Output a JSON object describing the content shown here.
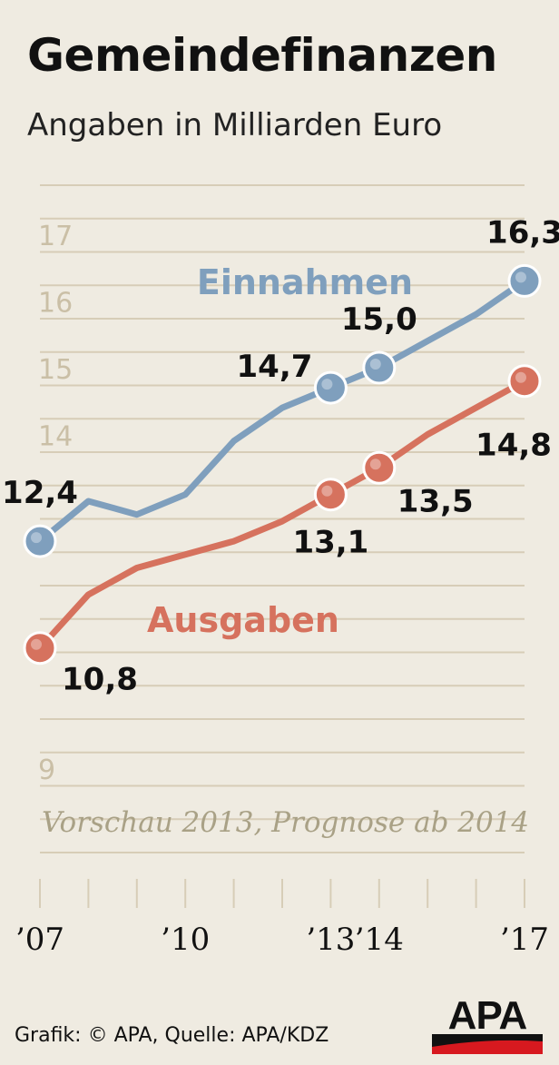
{
  "title": "Gemeindefinanzen",
  "subtitle": "Angaben in Milliarden Euro",
  "footer": {
    "source": "Grafik: © APA, Quelle: APA/KDZ",
    "logo": "APA"
  },
  "colors": {
    "background": "#efebe1",
    "einnahmen": "#7f9fbd",
    "ausgaben": "#d6725e",
    "grid": "#d7cdb7",
    "tick_label": "#cabfa6",
    "note": "#a9a186",
    "logo_red": "#d7191f"
  },
  "chart_data": {
    "type": "line",
    "title": "Gemeindefinanzen",
    "subtitle": "Angaben in Milliarden Euro",
    "ylim": [
      8.8,
      17.5
    ],
    "yticks": [
      9,
      14,
      15,
      16,
      17
    ],
    "ytick_labels": [
      "9",
      "14",
      "15",
      "16",
      "17"
    ],
    "grid": true,
    "x": [
      2007,
      2008,
      2009,
      2010,
      2011,
      2012,
      2013,
      2014,
      2015,
      2016,
      2017
    ],
    "x_tick_labels": [
      {
        "x": 2007,
        "label": "’07"
      },
      {
        "x": 2010,
        "label": "’10"
      },
      {
        "x": 2013,
        "label": "’13"
      },
      {
        "x": 2014,
        "label": "’14"
      },
      {
        "x": 2017,
        "label": "’17"
      }
    ],
    "note": "Vorschau 2013, Prognose ab 2014",
    "series": [
      {
        "name": "Einnahmen",
        "values": [
          12.4,
          13.0,
          12.8,
          13.1,
          13.9,
          14.4,
          14.7,
          15.0,
          15.4,
          15.8,
          16.3
        ],
        "labeled_points": [
          {
            "x": 2007,
            "label": "12,4"
          },
          {
            "x": 2013,
            "label": "14,7"
          },
          {
            "x": 2014,
            "label": "15,0"
          },
          {
            "x": 2017,
            "label": "16,3"
          }
        ]
      },
      {
        "name": "Ausgaben",
        "values": [
          10.8,
          11.6,
          12.0,
          12.2,
          12.4,
          12.7,
          13.1,
          13.5,
          14.0,
          14.4,
          14.8
        ],
        "labeled_points": [
          {
            "x": 2007,
            "label": "10,8"
          },
          {
            "x": 2013,
            "label": "13,1"
          },
          {
            "x": 2014,
            "label": "13,5"
          },
          {
            "x": 2017,
            "label": "14,8"
          }
        ]
      }
    ]
  }
}
